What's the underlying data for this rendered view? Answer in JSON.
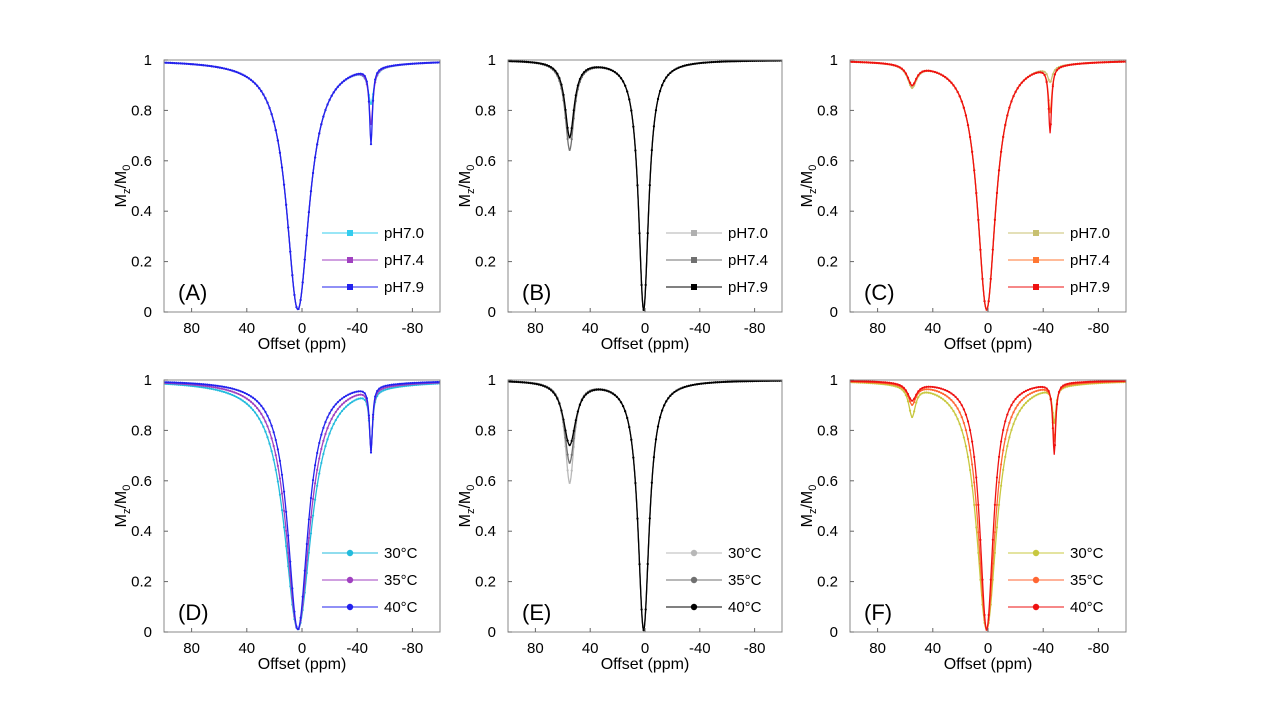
{
  "chart_data": [
    {
      "id": "A",
      "type": "line",
      "panel_label": "(A)",
      "xlabel": "Offset (ppm)",
      "ylabel_main": "M",
      "ylabel_sub1": "z",
      "ylabel_mid": "/M",
      "ylabel_sub2": "0",
      "xlim": [
        100,
        -100
      ],
      "ylim": [
        0,
        1
      ],
      "xticks": [
        80,
        40,
        0,
        -40,
        -80
      ],
      "xtick_labels": [
        "80",
        "40",
        "0",
        "-40",
        "-80"
      ],
      "yticks": [
        0,
        0.2,
        0.4,
        0.6,
        0.8,
        1
      ],
      "ytick_labels": [
        "0",
        "0.2",
        "0.4",
        "0.6",
        "0.8",
        "1"
      ],
      "marker": "square",
      "series": [
        {
          "name": "pH7.0",
          "color": "#33ccee",
          "dips": [
            {
              "center": 3,
              "depth": 0.99,
              "width": 10
            },
            {
              "center": -50,
              "depth": 0.14,
              "width": 2.5
            }
          ]
        },
        {
          "name": "pH7.4",
          "color": "#a040c0",
          "dips": [
            {
              "center": 3,
              "depth": 0.99,
              "width": 10
            },
            {
              "center": -50,
              "depth": 0.22,
              "width": 1.8
            }
          ]
        },
        {
          "name": "pH7.9",
          "color": "#2222ee",
          "dips": [
            {
              "center": 3,
              "depth": 0.99,
              "width": 10
            },
            {
              "center": -50,
              "depth": 0.3,
              "width": 1.3
            }
          ]
        }
      ]
    },
    {
      "id": "B",
      "type": "line",
      "panel_label": "(B)",
      "xlabel": "Offset (ppm)",
      "ylabel_main": "M",
      "ylabel_sub1": "z",
      "ylabel_mid": "/M",
      "ylabel_sub2": "0",
      "xlim": [
        100,
        -100
      ],
      "ylim": [
        0,
        1
      ],
      "xticks": [
        80,
        40,
        0,
        -40,
        -80
      ],
      "xtick_labels": [
        "80",
        "40",
        "0",
        "-40",
        "-80"
      ],
      "yticks": [
        0,
        0.2,
        0.4,
        0.6,
        0.8,
        1
      ],
      "ytick_labels": [
        "0",
        "0.2",
        "0.4",
        "0.6",
        "0.8",
        "1"
      ],
      "marker": "square",
      "series": [
        {
          "name": "pH7.0",
          "color": "#b0b0b0",
          "dips": [
            {
              "center": 1,
              "depth": 0.99,
              "width": 4.5
            },
            {
              "center": 55,
              "depth": 0.3,
              "width": 4
            }
          ]
        },
        {
          "name": "pH7.4",
          "color": "#707070",
          "dips": [
            {
              "center": 1,
              "depth": 0.99,
              "width": 4.5
            },
            {
              "center": 55,
              "depth": 0.35,
              "width": 4
            }
          ]
        },
        {
          "name": "pH7.9",
          "color": "#000000",
          "dips": [
            {
              "center": 1,
              "depth": 0.99,
              "width": 4.5
            },
            {
              "center": 55,
              "depth": 0.3,
              "width": 4
            }
          ]
        }
      ]
    },
    {
      "id": "C",
      "type": "line",
      "panel_label": "(C)",
      "xlabel": "Offset (ppm)",
      "ylabel_main": "M",
      "ylabel_sub1": "z",
      "ylabel_mid": "/M",
      "ylabel_sub2": "0",
      "xlim": [
        100,
        -100
      ],
      "ylim": [
        0,
        1
      ],
      "xticks": [
        80,
        40,
        0,
        -40,
        -80
      ],
      "xtick_labels": [
        "80",
        "40",
        "0",
        "-40",
        "-80"
      ],
      "yticks": [
        0,
        0.2,
        0.4,
        0.6,
        0.8,
        1
      ],
      "ytick_labels": [
        "0",
        "0.2",
        "0.4",
        "0.6",
        "0.8",
        "1"
      ],
      "marker": "square",
      "series": [
        {
          "name": "pH7.0",
          "color": "#c8c070",
          "dips": [
            {
              "center": 1,
              "depth": 0.99,
              "width": 8
            },
            {
              "center": 55,
              "depth": 0.09,
              "width": 4
            },
            {
              "center": -45,
              "depth": 0.06,
              "width": 2
            }
          ]
        },
        {
          "name": "pH7.4",
          "color": "#ff7733",
          "dips": [
            {
              "center": 1,
              "depth": 0.99,
              "width": 8
            },
            {
              "center": 55,
              "depth": 0.08,
              "width": 4
            },
            {
              "center": -45,
              "depth": 0.18,
              "width": 1.6
            }
          ]
        },
        {
          "name": "pH7.9",
          "color": "#ee1111",
          "dips": [
            {
              "center": 1,
              "depth": 0.99,
              "width": 8
            },
            {
              "center": 55,
              "depth": 0.08,
              "width": 4
            },
            {
              "center": -45,
              "depth": 0.26,
              "width": 1.3
            }
          ]
        }
      ]
    },
    {
      "id": "D",
      "type": "line",
      "panel_label": "(D)",
      "xlabel": "Offset (ppm)",
      "ylabel_main": "M",
      "ylabel_sub1": "z",
      "ylabel_mid": "/M",
      "ylabel_sub2": "0",
      "xlim": [
        100,
        -100
      ],
      "ylim": [
        0,
        1
      ],
      "xticks": [
        80,
        40,
        0,
        -40,
        -80
      ],
      "xtick_labels": [
        "80",
        "40",
        "0",
        "-40",
        "-80"
      ],
      "yticks": [
        0,
        0.2,
        0.4,
        0.6,
        0.8,
        1
      ],
      "ytick_labels": [
        "0",
        "0.2",
        "0.4",
        "0.6",
        "0.8",
        "1"
      ],
      "marker": "circle",
      "series": [
        {
          "name": "30°C",
          "color": "#22bbdd",
          "dips": [
            {
              "center": 3,
              "depth": 0.99,
              "width": 12
            },
            {
              "center": -50,
              "depth": 0.22,
              "width": 1.5
            }
          ]
        },
        {
          "name": "35°C",
          "color": "#a040c0",
          "dips": [
            {
              "center": 3,
              "depth": 0.99,
              "width": 10.5
            },
            {
              "center": -50,
              "depth": 0.24,
              "width": 1.4
            }
          ]
        },
        {
          "name": "40°C",
          "color": "#2222ee",
          "dips": [
            {
              "center": 3,
              "depth": 0.99,
              "width": 9
            },
            {
              "center": -50,
              "depth": 0.26,
              "width": 1.3
            }
          ]
        }
      ]
    },
    {
      "id": "E",
      "type": "line",
      "panel_label": "(E)",
      "xlabel": "Offset (ppm)",
      "ylabel_main": "M",
      "ylabel_sub1": "z",
      "ylabel_mid": "/M",
      "ylabel_sub2": "0",
      "xlim": [
        100,
        -100
      ],
      "ylim": [
        0,
        1
      ],
      "xticks": [
        80,
        40,
        0,
        -40,
        -80
      ],
      "xtick_labels": [
        "80",
        "40",
        "0",
        "-40",
        "-80"
      ],
      "yticks": [
        0,
        0.2,
        0.4,
        0.6,
        0.8,
        1
      ],
      "ytick_labels": [
        "0",
        "0.2",
        "0.4",
        "0.6",
        "0.8",
        "1"
      ],
      "marker": "circle",
      "series": [
        {
          "name": "30°C",
          "color": "#b8b8b8",
          "dips": [
            {
              "center": 1,
              "depth": 0.99,
              "width": 5
            },
            {
              "center": 55,
              "depth": 0.4,
              "width": 4
            }
          ]
        },
        {
          "name": "35°C",
          "color": "#707070",
          "dips": [
            {
              "center": 1,
              "depth": 0.99,
              "width": 5
            },
            {
              "center": 55,
              "depth": 0.32,
              "width": 4.5
            }
          ]
        },
        {
          "name": "40°C",
          "color": "#000000",
          "dips": [
            {
              "center": 1,
              "depth": 0.99,
              "width": 5
            },
            {
              "center": 55,
              "depth": 0.25,
              "width": 5.5
            }
          ]
        }
      ]
    },
    {
      "id": "F",
      "type": "line",
      "panel_label": "(F)",
      "xlabel": "Offset (ppm)",
      "ylabel_main": "M",
      "ylabel_sub1": "z",
      "ylabel_mid": "/M",
      "ylabel_sub2": "0",
      "xlim": [
        100,
        -100
      ],
      "ylim": [
        0,
        1
      ],
      "xticks": [
        80,
        40,
        0,
        -40,
        -80
      ],
      "xtick_labels": [
        "80",
        "40",
        "0",
        "-40",
        "-80"
      ],
      "yticks": [
        0,
        0.2,
        0.4,
        0.6,
        0.8,
        1
      ],
      "ytick_labels": [
        "0",
        "0.2",
        "0.4",
        "0.6",
        "0.8",
        "1"
      ],
      "marker": "circle",
      "series": [
        {
          "name": "30°C",
          "color": "#c8c840",
          "dips": [
            {
              "center": 1,
              "depth": 0.99,
              "width": 9
            },
            {
              "center": 55,
              "depth": 0.12,
              "width": 3
            },
            {
              "center": -48,
              "depth": 0.14,
              "width": 1.5
            }
          ]
        },
        {
          "name": "35°C",
          "color": "#ff6633",
          "dips": [
            {
              "center": 1,
              "depth": 0.99,
              "width": 7.5
            },
            {
              "center": 55,
              "depth": 0.08,
              "width": 3.5
            },
            {
              "center": -48,
              "depth": 0.22,
              "width": 1.4
            }
          ]
        },
        {
          "name": "40°C",
          "color": "#ee1111",
          "dips": [
            {
              "center": 1,
              "depth": 0.99,
              "width": 6
            },
            {
              "center": 55,
              "depth": 0.07,
              "width": 4
            },
            {
              "center": -48,
              "depth": 0.28,
              "width": 1.3
            }
          ]
        }
      ]
    }
  ]
}
